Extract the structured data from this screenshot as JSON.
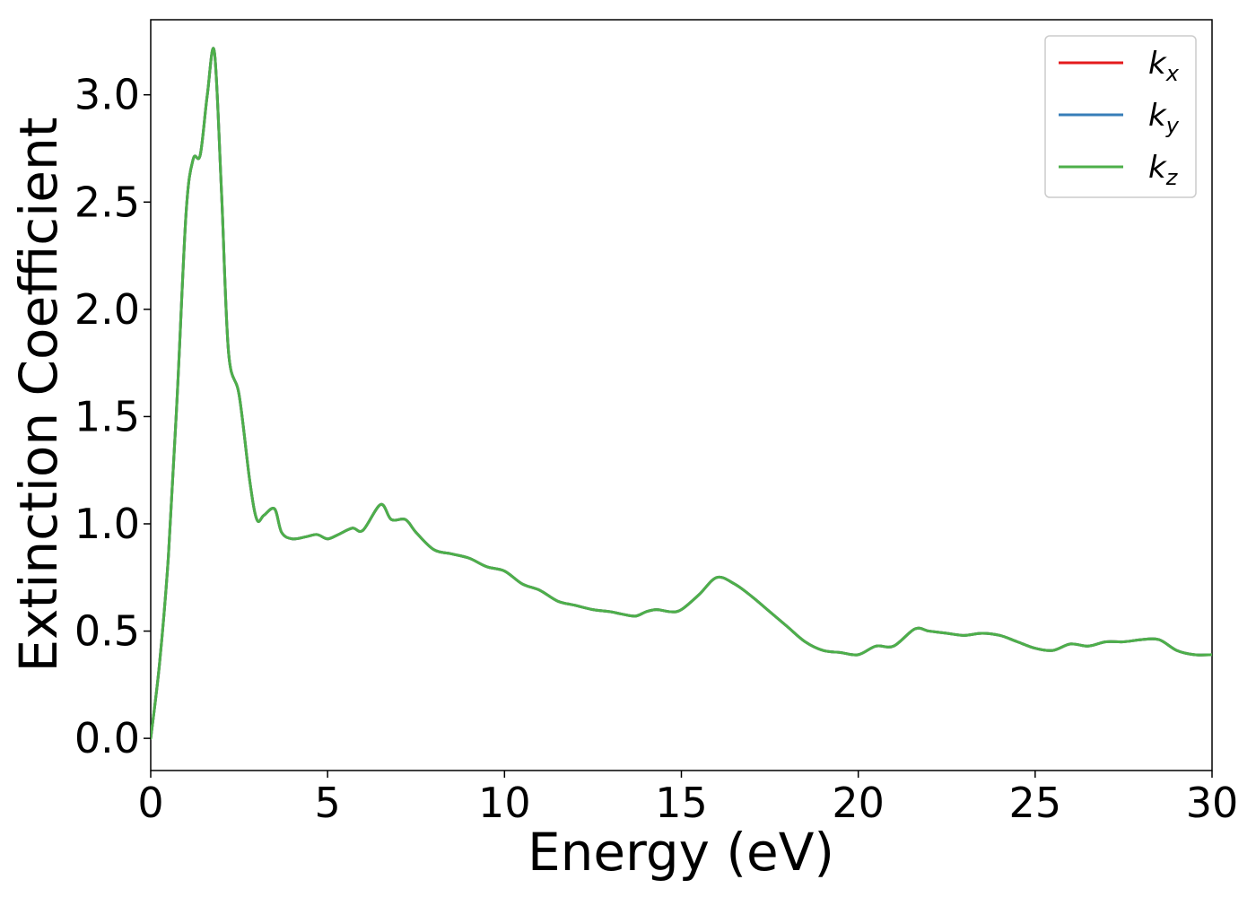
{
  "chart_data": {
    "type": "line",
    "title": "",
    "xlabel": "Energy (eV)",
    "ylabel": "Extinction Coefficient",
    "xlim": [
      0,
      30
    ],
    "ylim": [
      -0.15,
      3.35
    ],
    "xticks": [
      0,
      5,
      10,
      15,
      20,
      25,
      30
    ],
    "xtick_labels": [
      "0",
      "5",
      "10",
      "15",
      "20",
      "25",
      "30"
    ],
    "yticks": [
      0.0,
      0.5,
      1.0,
      1.5,
      2.0,
      2.5,
      3.0
    ],
    "ytick_labels": [
      "0.0",
      "0.5",
      "1.0",
      "1.5",
      "2.0",
      "2.5",
      "3.0"
    ],
    "grid": false,
    "legend_position": "top-right",
    "x": [
      0,
      0.25,
      0.5,
      0.75,
      1.0,
      1.2,
      1.4,
      1.6,
      1.8,
      2.0,
      2.2,
      2.5,
      2.8,
      3.0,
      3.2,
      3.5,
      3.7,
      4.0,
      4.4,
      4.7,
      5.0,
      5.3,
      5.7,
      6.0,
      6.5,
      6.8,
      7.2,
      7.5,
      8.0,
      8.5,
      9.0,
      9.5,
      10.0,
      10.5,
      11.0,
      11.5,
      12.0,
      12.5,
      13.0,
      13.3,
      13.7,
      14.0,
      14.3,
      14.7,
      15.0,
      15.5,
      16.0,
      16.5,
      17.0,
      17.5,
      18.0,
      18.5,
      19.0,
      19.5,
      20.0,
      20.5,
      21.0,
      21.6,
      22.0,
      22.5,
      23.0,
      23.5,
      24.0,
      24.5,
      25.0,
      25.5,
      26.0,
      26.5,
      27.0,
      27.5,
      28.0,
      28.5,
      29.0,
      29.5,
      30.0
    ],
    "series": [
      {
        "name": "k_x",
        "label_main": "k",
        "label_sub": "x",
        "color": "#e41a1c",
        "values": [
          0.0,
          0.35,
          0.85,
          1.6,
          2.45,
          2.7,
          2.72,
          3.0,
          3.2,
          2.55,
          1.8,
          1.6,
          1.2,
          1.02,
          1.04,
          1.07,
          0.96,
          0.93,
          0.94,
          0.95,
          0.93,
          0.95,
          0.98,
          0.97,
          1.09,
          1.02,
          1.02,
          0.96,
          0.88,
          0.86,
          0.84,
          0.8,
          0.78,
          0.72,
          0.69,
          0.64,
          0.62,
          0.6,
          0.59,
          0.58,
          0.57,
          0.59,
          0.6,
          0.59,
          0.6,
          0.67,
          0.75,
          0.72,
          0.66,
          0.59,
          0.52,
          0.45,
          0.41,
          0.4,
          0.39,
          0.43,
          0.43,
          0.51,
          0.5,
          0.49,
          0.48,
          0.49,
          0.48,
          0.45,
          0.42,
          0.41,
          0.44,
          0.43,
          0.45,
          0.45,
          0.46,
          0.46,
          0.41,
          0.39,
          0.39
        ]
      },
      {
        "name": "k_y",
        "label_main": "k",
        "label_sub": "y",
        "color": "#377eb8",
        "values": [
          0.0,
          0.35,
          0.85,
          1.6,
          2.45,
          2.7,
          2.72,
          3.0,
          3.2,
          2.55,
          1.8,
          1.6,
          1.2,
          1.02,
          1.04,
          1.07,
          0.96,
          0.93,
          0.94,
          0.95,
          0.93,
          0.95,
          0.98,
          0.97,
          1.09,
          1.02,
          1.02,
          0.96,
          0.88,
          0.86,
          0.84,
          0.8,
          0.78,
          0.72,
          0.69,
          0.64,
          0.62,
          0.6,
          0.59,
          0.58,
          0.57,
          0.59,
          0.6,
          0.59,
          0.6,
          0.67,
          0.75,
          0.72,
          0.66,
          0.59,
          0.52,
          0.45,
          0.41,
          0.4,
          0.39,
          0.43,
          0.43,
          0.51,
          0.5,
          0.49,
          0.48,
          0.49,
          0.48,
          0.45,
          0.42,
          0.41,
          0.44,
          0.43,
          0.45,
          0.45,
          0.46,
          0.46,
          0.41,
          0.39,
          0.39
        ]
      },
      {
        "name": "k_z",
        "label_main": "k",
        "label_sub": "z",
        "color": "#4daf4a",
        "values": [
          0.0,
          0.35,
          0.85,
          1.6,
          2.45,
          2.7,
          2.72,
          3.0,
          3.2,
          2.55,
          1.8,
          1.6,
          1.2,
          1.02,
          1.04,
          1.07,
          0.96,
          0.93,
          0.94,
          0.95,
          0.93,
          0.95,
          0.98,
          0.97,
          1.09,
          1.02,
          1.02,
          0.96,
          0.88,
          0.86,
          0.84,
          0.8,
          0.78,
          0.72,
          0.69,
          0.64,
          0.62,
          0.6,
          0.59,
          0.58,
          0.57,
          0.59,
          0.6,
          0.59,
          0.6,
          0.67,
          0.75,
          0.72,
          0.66,
          0.59,
          0.52,
          0.45,
          0.41,
          0.4,
          0.39,
          0.43,
          0.43,
          0.51,
          0.5,
          0.49,
          0.48,
          0.49,
          0.48,
          0.45,
          0.42,
          0.41,
          0.44,
          0.43,
          0.45,
          0.45,
          0.46,
          0.46,
          0.41,
          0.39,
          0.39
        ]
      }
    ]
  }
}
